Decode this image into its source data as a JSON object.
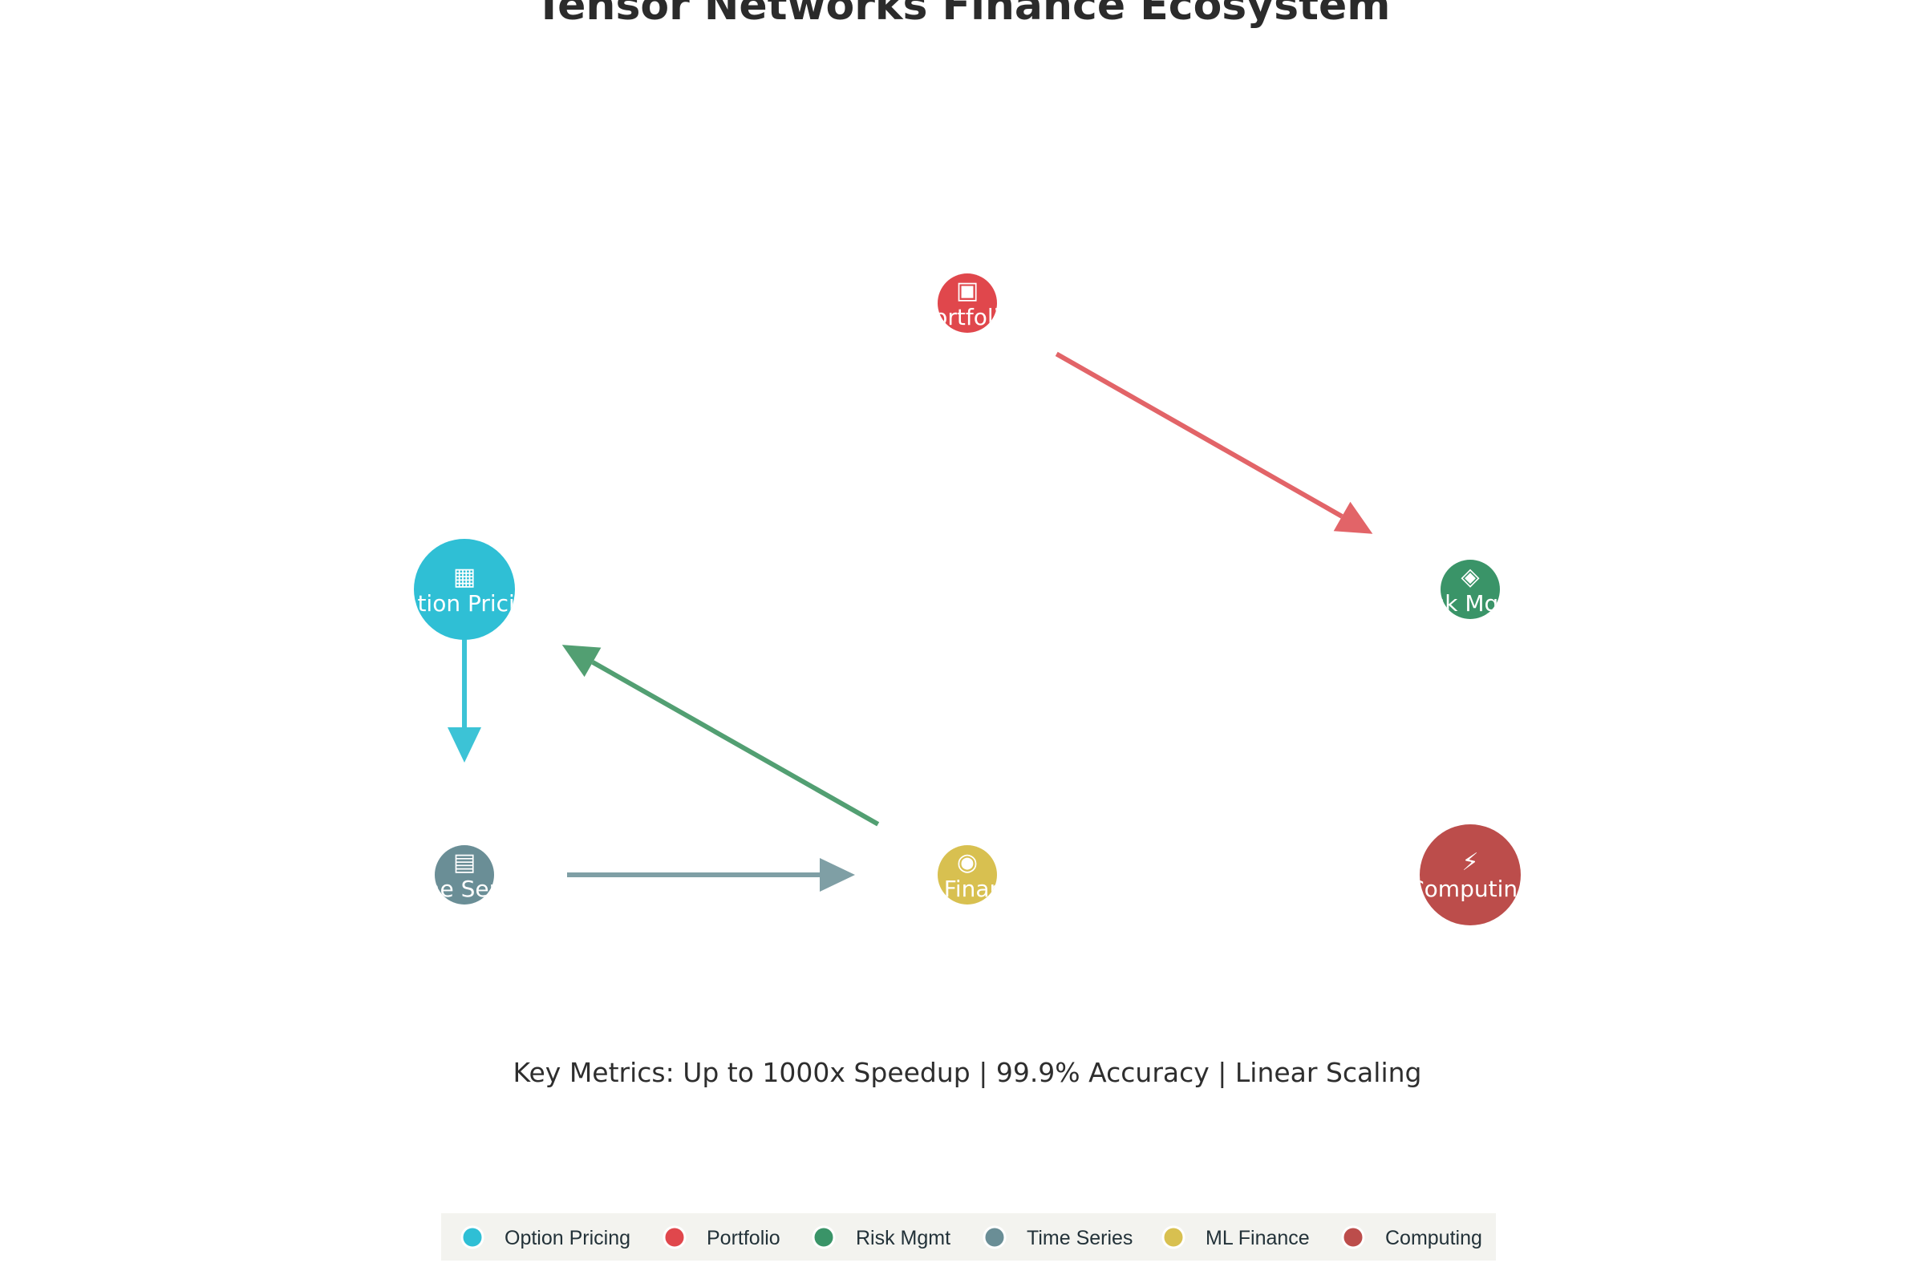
{
  "title": "Tensor Networks Finance Ecosystem",
  "metrics": "Key Metrics: Up to 1000x Speedup | 99.9% Accuracy | Linear Scaling",
  "nodes": [
    {
      "id": "option-pricing",
      "label": "Option Pricing",
      "icon": "▦",
      "icon_name": "chart-icon",
      "color": "#2fbfd5",
      "size": "large",
      "row": 1,
      "col": 0
    },
    {
      "id": "portfolio",
      "label": "Portfolio",
      "icon": "▣",
      "icon_name": "briefcase-icon",
      "color": "#e0474c",
      "size": "small",
      "row": 0,
      "col": 1
    },
    {
      "id": "risk-mgmt",
      "label": "Risk Mgmt",
      "icon": "◈",
      "icon_name": "shield-icon",
      "color": "#3a9468",
      "size": "small",
      "row": 1,
      "col": 2
    },
    {
      "id": "time-series",
      "label": "Time Series",
      "icon": "▤",
      "icon_name": "calendar-icon",
      "color": "#6a8e96",
      "size": "small",
      "row": 2,
      "col": 0
    },
    {
      "id": "ml-finance",
      "label": "ML Finance",
      "icon": "◉",
      "icon_name": "brain-icon",
      "color": "#d8c050",
      "size": "small",
      "row": 2,
      "col": 1
    },
    {
      "id": "computing",
      "label": "Computing",
      "icon": "⚡",
      "icon_name": "lightning-icon",
      "color": "#bc4d4b",
      "size": "large",
      "row": 2,
      "col": 2
    }
  ],
  "edges": [
    {
      "from": "portfolio",
      "to": "risk-mgmt",
      "color": "#e26468"
    },
    {
      "from": "option-pricing",
      "to": "time-series",
      "color": "#3cc3d6"
    },
    {
      "from": "ml-finance",
      "to": "option-pricing",
      "color": "#529f72"
    },
    {
      "from": "time-series",
      "to": "ml-finance",
      "color": "#7f9fa5"
    }
  ],
  "legend": {
    "background": "#f3f3ef",
    "items": [
      {
        "label": "Option Pricing",
        "color": "#2fbfd5"
      },
      {
        "label": "Portfolio",
        "color": "#e0474c"
      },
      {
        "label": "Risk Mgmt",
        "color": "#3a9468"
      },
      {
        "label": "Time Series",
        "color": "#6a8e96"
      },
      {
        "label": "ML Finance",
        "color": "#d8c050"
      },
      {
        "label": "Computing",
        "color": "#bc4d4b"
      }
    ]
  }
}
